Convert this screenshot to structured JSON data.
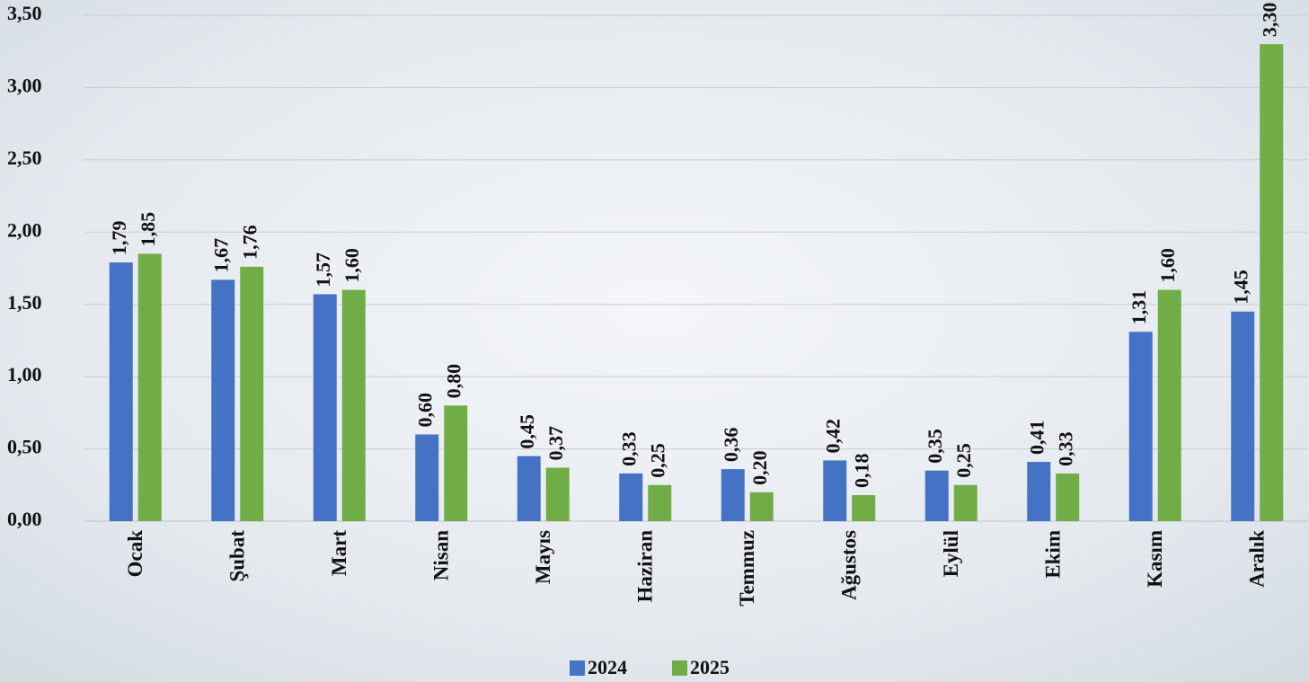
{
  "chart_data": {
    "type": "bar",
    "categories": [
      "Ocak",
      "Şubat",
      "Mart",
      "Nisan",
      "Mayıs",
      "Haziran",
      "Temmuz",
      "Ağustos",
      "Eylül",
      "Ekim",
      "Kasım",
      "Aralık"
    ],
    "series": [
      {
        "name": "2024",
        "color": "#4472c4",
        "values": [
          1.79,
          1.67,
          1.57,
          0.6,
          0.45,
          0.33,
          0.36,
          0.42,
          0.35,
          0.41,
          1.31,
          1.45
        ],
        "value_labels": [
          "1,79",
          "1,67",
          "1,57",
          "0,60",
          "0,45",
          "0,33",
          "0,36",
          "0,42",
          "0,35",
          "0,41",
          "1,31",
          "1,45"
        ]
      },
      {
        "name": "2025",
        "color": "#70ad47",
        "values": [
          1.85,
          1.76,
          1.6,
          0.8,
          0.37,
          0.25,
          0.2,
          0.18,
          0.25,
          0.33,
          1.6,
          3.3
        ],
        "value_labels": [
          "1,85",
          "1,76",
          "1,60",
          "0,80",
          "0,37",
          "0,25",
          "0,20",
          "0,18",
          "0,25",
          "0,33",
          "1,60",
          "3,30"
        ]
      }
    ],
    "ylim": [
      0,
      3.5
    ],
    "yticks": [
      {
        "value": 0,
        "label": "0,00"
      },
      {
        "value": 0.5,
        "label": "0,50"
      },
      {
        "value": 1,
        "label": "1,00"
      },
      {
        "value": 1.5,
        "label": "1,50"
      },
      {
        "value": 2,
        "label": "2,00"
      },
      {
        "value": 2.5,
        "label": "2,50"
      },
      {
        "value": 3,
        "label": "3,00"
      },
      {
        "value": 3.5,
        "label": "3,50"
      }
    ],
    "grid": true,
    "legend": "bottom"
  }
}
